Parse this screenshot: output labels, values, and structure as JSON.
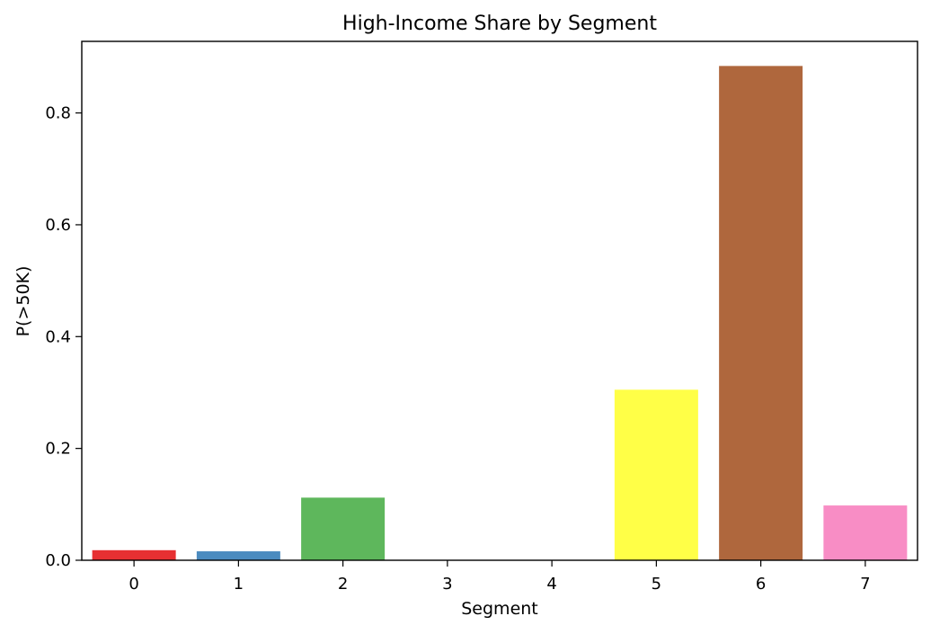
{
  "chart_data": {
    "type": "bar",
    "title": "High-Income Share by Segment",
    "xlabel": "Segment",
    "ylabel": "P(>50K)",
    "categories": [
      "0",
      "1",
      "2",
      "3",
      "4",
      "5",
      "6",
      "7"
    ],
    "values": [
      0.018,
      0.016,
      0.112,
      0.0,
      0.0,
      0.305,
      0.884,
      0.098
    ],
    "colors": [
      "#e41a1c",
      "#377eb8",
      "#4daf4a",
      "#984ea3",
      "#ff7f00",
      "#ffff33",
      "#a65628",
      "#f781bf"
    ],
    "bar_opacity": 0.9,
    "ylim": [
      0,
      0.928
    ],
    "yticks": [
      0.0,
      0.2,
      0.4,
      0.6,
      0.8
    ],
    "ytick_labels": [
      "0.0",
      "0.2",
      "0.4",
      "0.6",
      "0.8"
    ],
    "grid": false,
    "legend": "none"
  }
}
